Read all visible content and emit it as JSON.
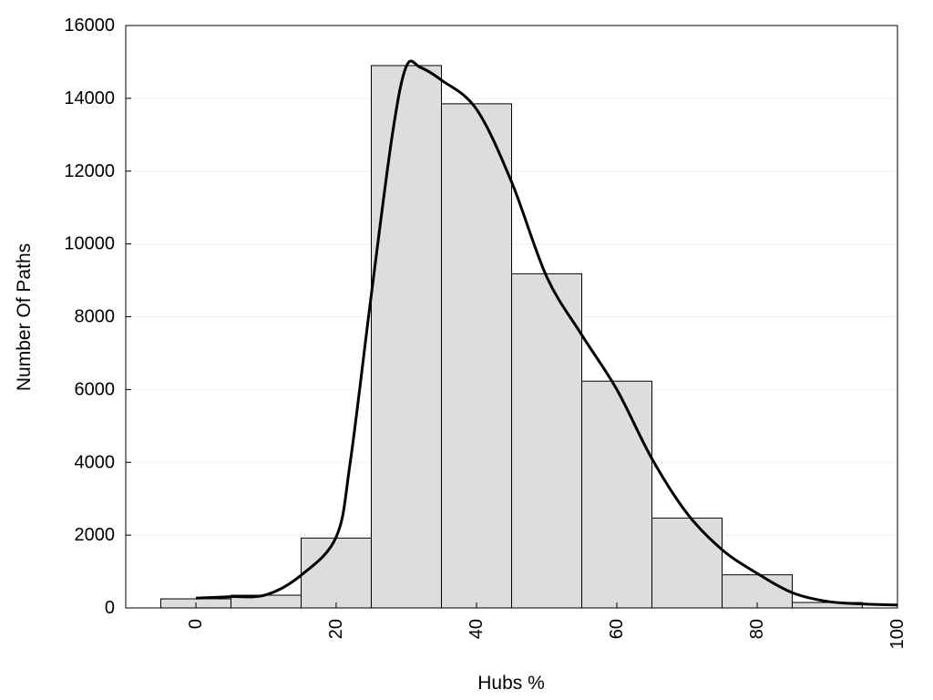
{
  "chart_data": {
    "type": "bar",
    "title": "",
    "xlabel": "Hubs %",
    "ylabel": "Number Of Paths",
    "xlim": [
      -10,
      100
    ],
    "ylim": [
      0,
      16000
    ],
    "x_ticks": [
      0,
      20,
      40,
      60,
      80,
      100
    ],
    "y_ticks": [
      0,
      2000,
      4000,
      6000,
      8000,
      10000,
      12000,
      14000,
      16000
    ],
    "grid": "horizontal-dotted",
    "legend": "none",
    "bin_width": 10,
    "bins": [
      0,
      10,
      20,
      30,
      40,
      50,
      60,
      70,
      80,
      90
    ],
    "values": [
      250,
      350,
      1920,
      14900,
      13850,
      9180,
      6230,
      2470,
      910,
      150
    ],
    "series": [
      {
        "type": "line",
        "x": [
          0,
          5,
          10,
          15,
          20,
          22,
          25,
          28,
          30,
          32,
          35,
          40,
          45,
          50,
          55,
          60,
          65,
          70,
          75,
          80,
          85,
          90,
          95,
          100
        ],
        "y": [
          270,
          310,
          360,
          900,
          1950,
          4000,
          8600,
          13000,
          14880,
          14850,
          14500,
          13700,
          11700,
          9100,
          7500,
          6000,
          4100,
          2600,
          1600,
          950,
          420,
          180,
          110,
          80
        ]
      }
    ],
    "colors": {
      "bar_fill": "#dddddd",
      "bar_stroke": "#000000",
      "line": "#000000",
      "grid": "#c8c8c8"
    }
  }
}
